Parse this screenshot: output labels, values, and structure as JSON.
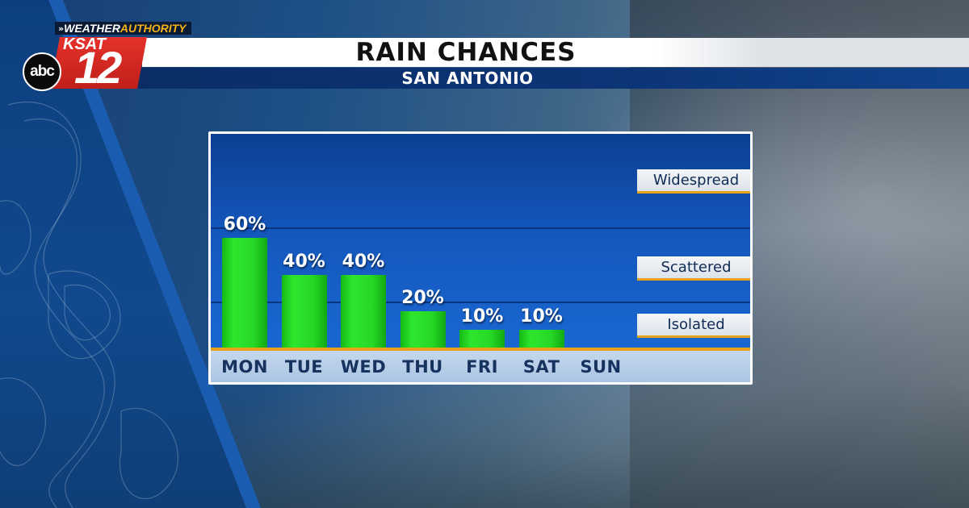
{
  "branding": {
    "segment_weather": "WEATHER",
    "segment_authority": "AUTHORITY",
    "segment_arrows": "»",
    "station": "KSAT",
    "channel": "12",
    "network": "abc"
  },
  "header": {
    "title": "RAIN CHANCES",
    "subtitle": "SAN ANTONIO"
  },
  "colors": {
    "bar": "#22d822",
    "accent": "#e8a21a",
    "title_bar": "#ffffff",
    "subtitle_bar": "#0c3577",
    "plot_bg": "#1357bb"
  },
  "chart_data": {
    "type": "bar",
    "title": "RAIN CHANCES",
    "subtitle": "SAN ANTONIO",
    "categories": [
      "MON",
      "TUE",
      "WED",
      "THU",
      "FRI",
      "SAT",
      "SUN"
    ],
    "values": [
      60,
      40,
      40,
      20,
      10,
      10,
      0
    ],
    "value_labels": [
      "60%",
      "40%",
      "40%",
      "20%",
      "10%",
      "10%",
      ""
    ],
    "unit": "%",
    "ylim": [
      0,
      100
    ],
    "intensity_labels": [
      "Widespread",
      "Scattered",
      "Isolated"
    ],
    "grid": false,
    "legend": "none"
  }
}
